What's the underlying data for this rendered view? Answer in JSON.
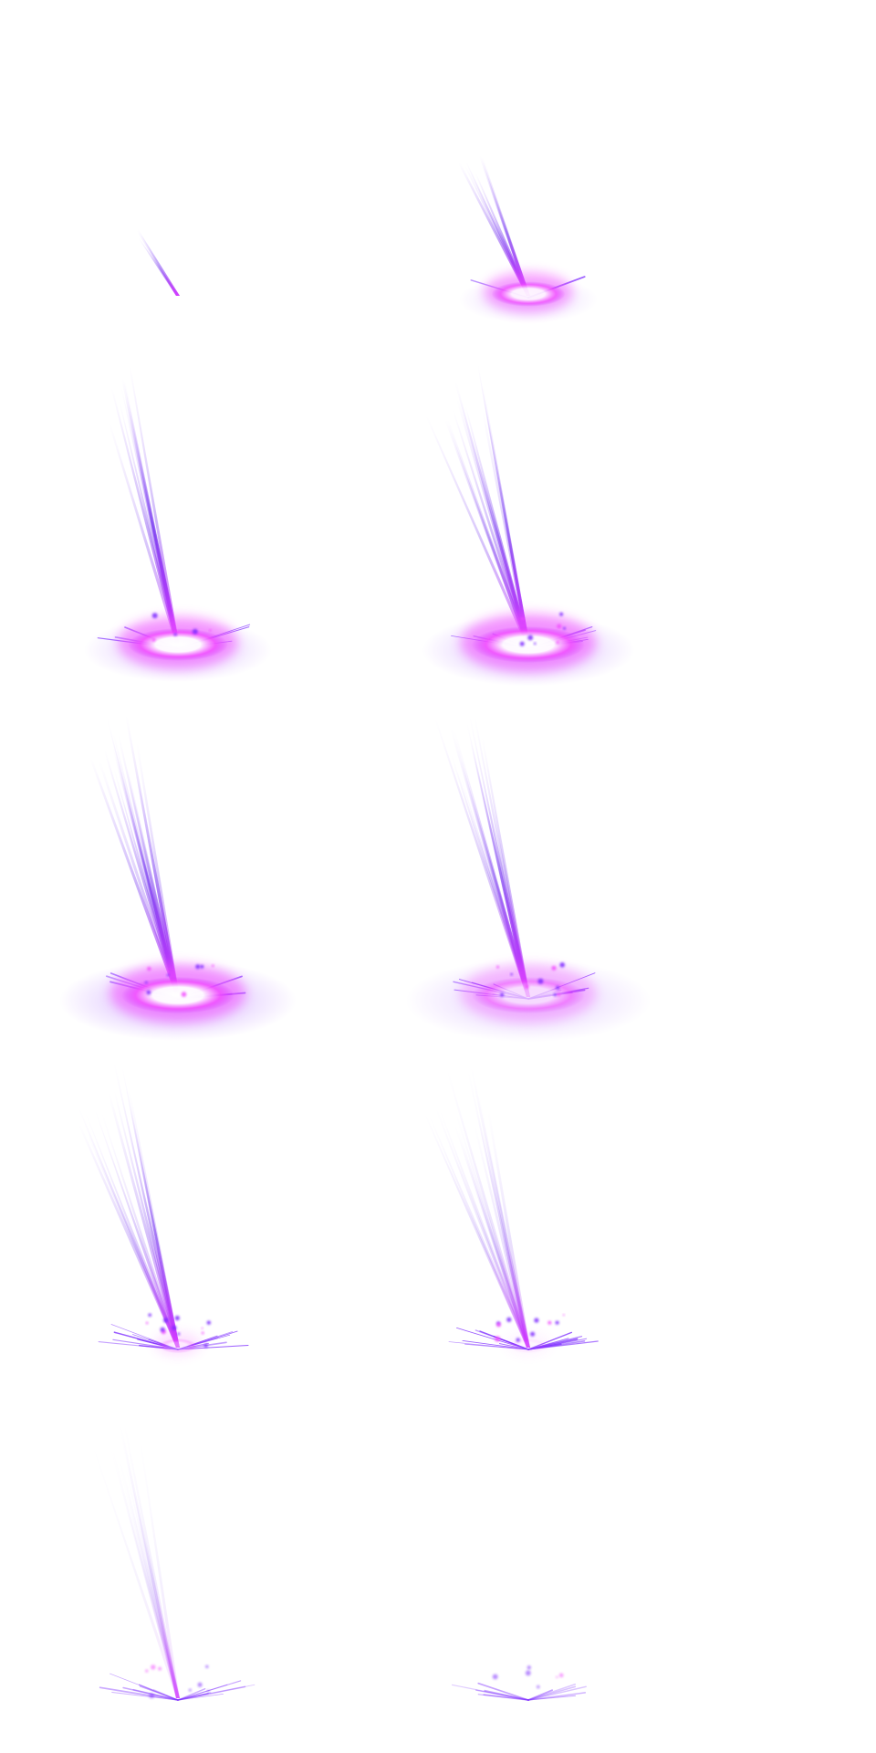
{
  "sprite_sheet": {
    "effect": "purple-energy-strike",
    "columns": 2,
    "rows": 5,
    "frame_count": 10,
    "background": "#ffffff",
    "colors": {
      "streak": "#7a3cf0",
      "streak_light": "#b78cff",
      "core": "#ffffff",
      "hot_pink": "#f24dff",
      "magenta": "#d238ff",
      "glow": "#a45cff",
      "spark": "#7d2cff"
    },
    "frames": [
      {
        "index": 1,
        "streak_count": 3,
        "streak_opacity": 0.95,
        "glow_radius": 0.0,
        "core_intensity": 0.0,
        "shards": 0,
        "spark_dots": 0,
        "haze": 0.0
      },
      {
        "index": 2,
        "streak_count": 6,
        "streak_opacity": 0.95,
        "glow_radius": 0.4,
        "core_intensity": 0.9,
        "shards": 2,
        "spark_dots": 0,
        "haze": 0.4
      },
      {
        "index": 3,
        "streak_count": 9,
        "streak_opacity": 0.95,
        "glow_radius": 0.7,
        "core_intensity": 1.0,
        "shards": 6,
        "spark_dots": 5,
        "haze": 0.6
      },
      {
        "index": 4,
        "streak_count": 12,
        "streak_opacity": 0.9,
        "glow_radius": 0.85,
        "core_intensity": 1.0,
        "shards": 12,
        "spark_dots": 8,
        "haze": 0.7
      },
      {
        "index": 5,
        "streak_count": 14,
        "streak_opacity": 0.85,
        "glow_radius": 1.0,
        "core_intensity": 1.0,
        "shards": 10,
        "spark_dots": 8,
        "haze": 0.8
      },
      {
        "index": 6,
        "streak_count": 14,
        "streak_opacity": 0.7,
        "glow_radius": 1.05,
        "core_intensity": 0.6,
        "shards": 14,
        "spark_dots": 10,
        "haze": 0.5
      },
      {
        "index": 7,
        "streak_count": 14,
        "streak_opacity": 0.6,
        "glow_radius": 0.0,
        "core_intensity": 0.3,
        "shards": 16,
        "spark_dots": 12,
        "haze": 0.0
      },
      {
        "index": 8,
        "streak_count": 14,
        "streak_opacity": 0.4,
        "glow_radius": 0.0,
        "core_intensity": 0.1,
        "shards": 16,
        "spark_dots": 10,
        "haze": 0.0
      },
      {
        "index": 9,
        "streak_count": 12,
        "streak_opacity": 0.18,
        "glow_radius": 0.0,
        "core_intensity": 0.0,
        "shards": 16,
        "spark_dots": 8,
        "haze": 0.0
      },
      {
        "index": 10,
        "streak_count": 0,
        "streak_opacity": 0.0,
        "glow_radius": 0.0,
        "core_intensity": 0.0,
        "shards": 12,
        "spark_dots": 6,
        "haze": 0.0
      }
    ]
  }
}
